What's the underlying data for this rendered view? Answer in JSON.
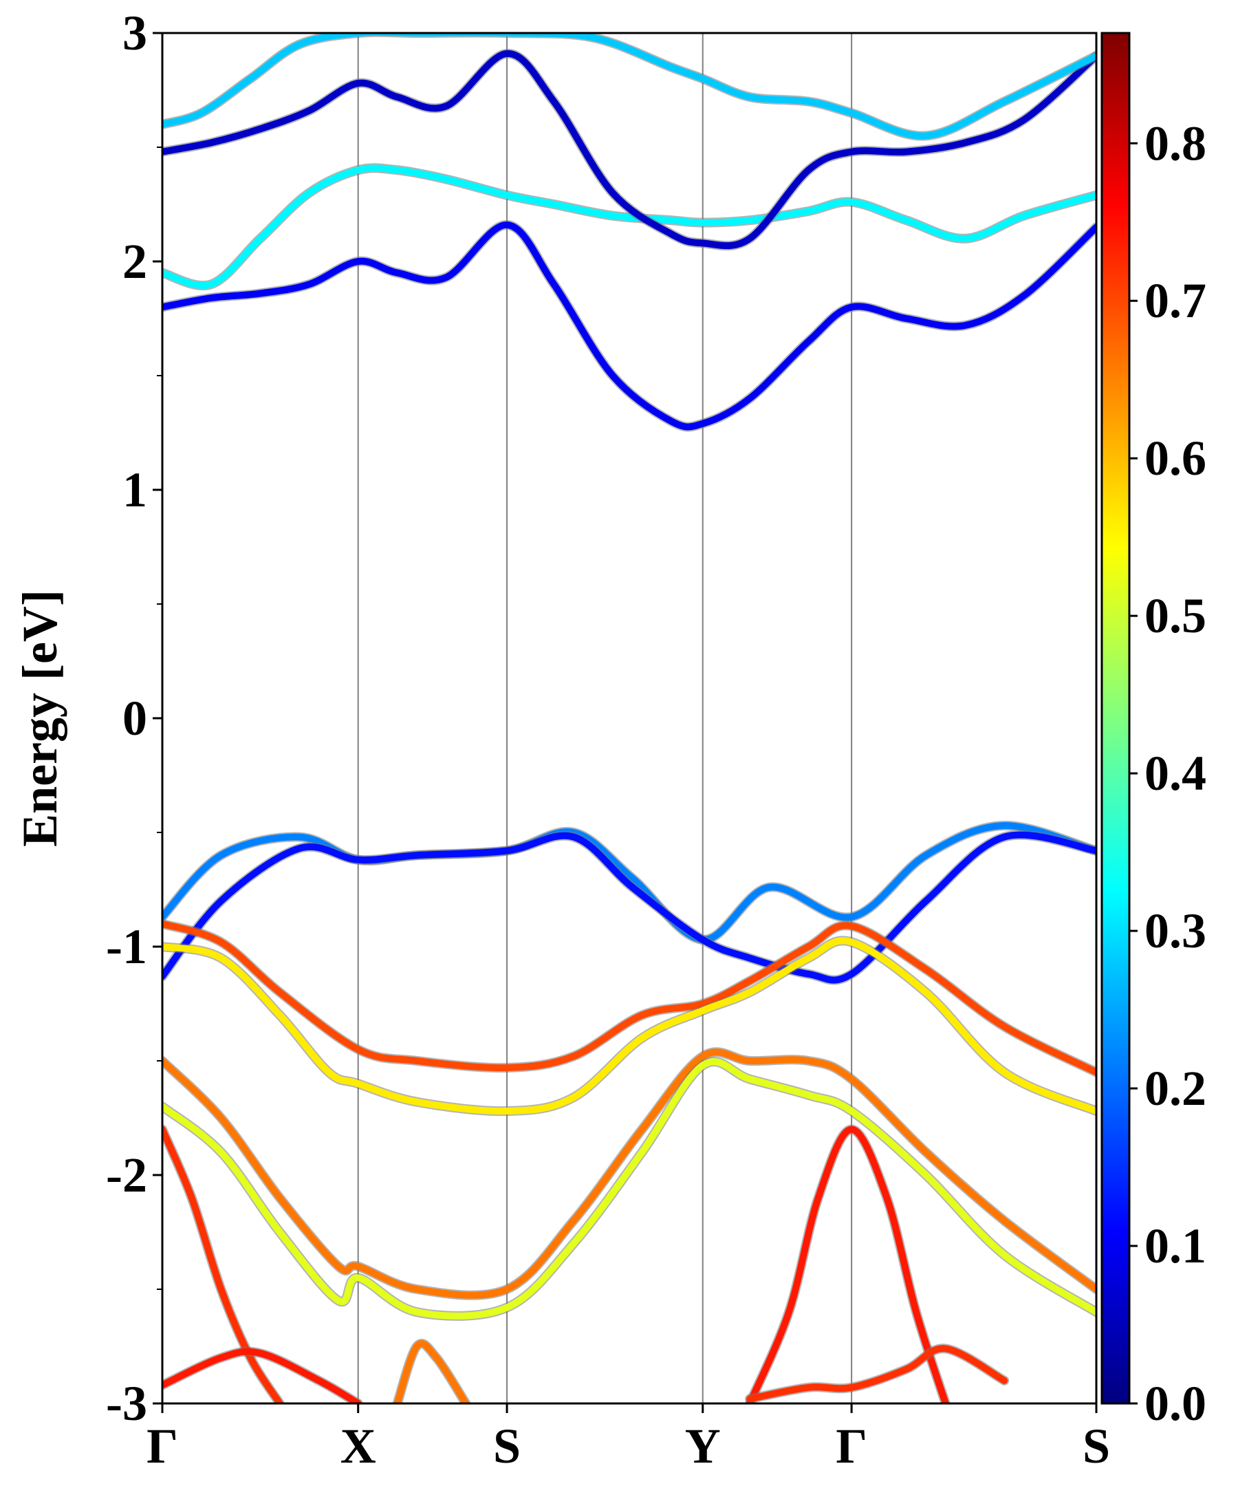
{
  "chart_data": {
    "type": "line",
    "title": "",
    "ylabel": "Energy [eV]",
    "xlabel": "",
    "ylim": [
      -3,
      3
    ],
    "x_ticks": [
      {
        "label": "Γ",
        "k": 0.0
      },
      {
        "label": "X",
        "k": 1.0
      },
      {
        "label": "S",
        "k": 1.76
      },
      {
        "label": "Y",
        "k": 2.76
      },
      {
        "label": "Γ",
        "k": 3.52
      },
      {
        "label": "S",
        "k": 4.77
      }
    ],
    "y_ticks": [
      "3",
      "2",
      "1",
      "0",
      "-1",
      "-2",
      "-3"
    ],
    "grid": "vertical lines at high-symmetry points",
    "colorbar": {
      "colormap": "jet",
      "range": [
        0.0,
        0.87
      ],
      "ticks": [
        "0.8",
        "0.7",
        "0.6",
        "0.5",
        "0.4",
        "0.3",
        "0.2",
        "0.1",
        "0.0"
      ]
    },
    "bands": [
      {
        "x": [
          0,
          0.25,
          0.5,
          0.75,
          1.0,
          1.2,
          1.45,
          1.76,
          2.0,
          2.3,
          2.6,
          2.76,
          3.0,
          3.3,
          3.52,
          3.8,
          4.1,
          4.4,
          4.77
        ],
        "energy": [
          1.8,
          1.84,
          1.86,
          1.9,
          2.0,
          1.95,
          1.93,
          2.16,
          1.9,
          1.5,
          1.3,
          1.29,
          1.4,
          1.65,
          1.8,
          1.75,
          1.72,
          1.85,
          2.15
        ],
        "weight": 0.1
      },
      {
        "x": [
          0,
          0.25,
          0.5,
          0.75,
          1.0,
          1.2,
          1.45,
          1.76,
          2.0,
          2.3,
          2.6,
          2.76,
          3.0,
          3.3,
          3.52,
          3.8,
          4.1,
          4.4,
          4.77
        ],
        "energy": [
          1.95,
          1.9,
          2.1,
          2.3,
          2.4,
          2.4,
          2.36,
          2.29,
          2.25,
          2.2,
          2.18,
          2.17,
          2.18,
          2.22,
          2.26,
          2.18,
          2.1,
          2.2,
          2.29
        ],
        "weight": 0.32
      },
      {
        "x": [
          0,
          0.25,
          0.5,
          0.75,
          1.0,
          1.2,
          1.45,
          1.76,
          2.0,
          2.3,
          2.6,
          2.76,
          3.0,
          3.3,
          3.52,
          3.8,
          4.1,
          4.4,
          4.77
        ],
        "energy": [
          2.48,
          2.52,
          2.58,
          2.66,
          2.78,
          2.72,
          2.68,
          2.91,
          2.7,
          2.3,
          2.12,
          2.08,
          2.1,
          2.4,
          2.48,
          2.48,
          2.52,
          2.62,
          2.9
        ],
        "weight": 0.06
      },
      {
        "x": [
          0,
          0.2,
          0.45,
          0.7,
          1.0,
          1.3,
          1.76,
          2.2,
          2.6,
          2.76,
          3.0,
          3.3,
          3.52,
          3.9,
          4.3,
          4.77
        ],
        "energy": [
          2.6,
          2.65,
          2.8,
          2.95,
          3.0,
          3.0,
          3.0,
          2.98,
          2.85,
          2.8,
          2.72,
          2.7,
          2.65,
          2.55,
          2.7,
          2.9
        ],
        "weight": 0.28
      },
      {
        "x": [
          0,
          0.3,
          0.7,
          1.0,
          1.3,
          1.76,
          2.1,
          2.4,
          2.76,
          3.1,
          3.52,
          3.9,
          4.3,
          4.77
        ],
        "energy": [
          -0.87,
          -0.6,
          -0.52,
          -0.62,
          -0.6,
          -0.58,
          -0.5,
          -0.7,
          -0.97,
          -0.74,
          -0.87,
          -0.6,
          -0.47,
          -0.58
        ],
        "weight": 0.22
      },
      {
        "x": [
          0,
          0.3,
          0.7,
          1.0,
          1.3,
          1.76,
          2.1,
          2.4,
          2.76,
          3.0,
          3.3,
          3.52,
          3.9,
          4.3,
          4.77
        ],
        "energy": [
          -1.13,
          -0.8,
          -0.57,
          -0.62,
          -0.6,
          -0.58,
          -0.52,
          -0.74,
          -0.97,
          -1.05,
          -1.12,
          -1.12,
          -0.8,
          -0.52,
          -0.58
        ],
        "weight": 0.12
      },
      {
        "x": [
          0,
          0.3,
          0.6,
          1.0,
          1.3,
          1.76,
          2.1,
          2.45,
          2.76,
          3.0,
          3.3,
          3.52,
          3.9,
          4.3,
          4.77
        ],
        "energy": [
          -0.9,
          -0.98,
          -1.2,
          -1.45,
          -1.5,
          -1.53,
          -1.48,
          -1.3,
          -1.25,
          -1.15,
          -1.0,
          -0.91,
          -1.1,
          -1.35,
          -1.55
        ],
        "weight": 0.7
      },
      {
        "x": [
          0,
          0.3,
          0.6,
          0.85,
          1.0,
          1.3,
          1.76,
          2.1,
          2.45,
          2.76,
          3.0,
          3.3,
          3.52,
          3.9,
          4.3,
          4.77
        ],
        "energy": [
          -1.0,
          -1.05,
          -1.3,
          -1.55,
          -1.6,
          -1.68,
          -1.72,
          -1.66,
          -1.4,
          -1.28,
          -1.2,
          -1.05,
          -0.98,
          -1.2,
          -1.55,
          -1.72
        ],
        "weight": 0.56
      },
      {
        "x": [
          0,
          0.3,
          0.6,
          0.9,
          1.0,
          1.3,
          1.76,
          2.1,
          2.45,
          2.76,
          3.0,
          3.3,
          3.52,
          3.9,
          4.3,
          4.77
        ],
        "energy": [
          -1.5,
          -1.75,
          -2.1,
          -2.4,
          -2.4,
          -2.5,
          -2.5,
          -2.2,
          -1.8,
          -1.48,
          -1.5,
          -1.5,
          -1.58,
          -1.9,
          -2.2,
          -2.5
        ],
        "weight": 0.66
      },
      {
        "x": [
          0,
          0.3,
          0.6,
          0.9,
          1.0,
          1.3,
          1.76,
          2.1,
          2.45,
          2.76,
          3.0,
          3.3,
          3.52,
          3.9,
          4.3,
          4.77
        ],
        "energy": [
          -1.7,
          -1.9,
          -2.25,
          -2.55,
          -2.45,
          -2.6,
          -2.58,
          -2.3,
          -1.9,
          -1.52,
          -1.58,
          -1.65,
          -1.72,
          -2.0,
          -2.35,
          -2.6
        ],
        "weight": 0.52
      },
      {
        "x": [
          0,
          0.15,
          0.3,
          0.45,
          0.6
        ],
        "energy": [
          -1.8,
          -2.1,
          -2.5,
          -2.8,
          -3.0
        ],
        "weight": 0.72
      },
      {
        "x": [
          0,
          0.3,
          0.5,
          0.8,
          1.0
        ],
        "energy": [
          -2.92,
          -2.8,
          -2.78,
          -2.9,
          -3.0
        ],
        "weight": 0.74
      },
      {
        "x": [
          1.2,
          1.3,
          1.4,
          1.55
        ],
        "energy": [
          -3.0,
          -2.75,
          -2.8,
          -3.0
        ],
        "weight": 0.66
      },
      {
        "x": [
          3.0,
          3.2,
          3.35,
          3.52,
          3.7,
          3.85,
          4.0
        ],
        "energy": [
          -3.0,
          -2.6,
          -2.1,
          -1.8,
          -2.1,
          -2.6,
          -3.0
        ],
        "weight": 0.74
      },
      {
        "x": [
          3.0,
          3.3,
          3.52,
          3.8,
          4.0,
          4.3
        ],
        "energy": [
          -2.98,
          -2.93,
          -2.93,
          -2.85,
          -2.76,
          -2.9
        ],
        "weight": 0.72
      }
    ]
  }
}
